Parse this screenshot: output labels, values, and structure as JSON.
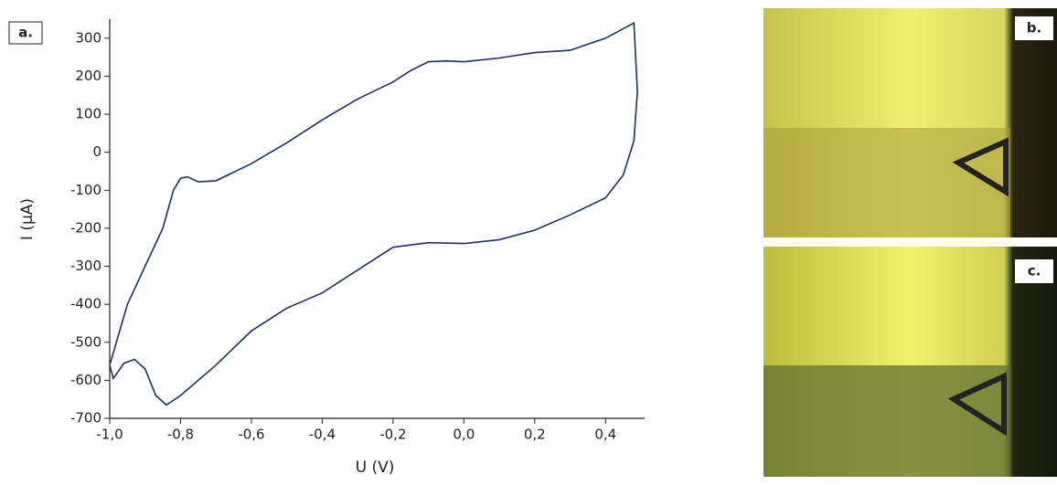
{
  "chart_data": {
    "type": "line",
    "panel_label": "a.",
    "xlabel": "U (V)",
    "ylabel": "I (µA)",
    "xlim": [
      -1.0,
      0.5
    ],
    "ylim": [
      -700,
      350
    ],
    "xticks": [
      {
        "value": -1.0,
        "label": "-1,0"
      },
      {
        "value": -0.8,
        "label": "-0,8"
      },
      {
        "value": -0.6,
        "label": "-0,6"
      },
      {
        "value": -0.4,
        "label": "-0,4"
      },
      {
        "value": -0.2,
        "label": "-0,2"
      },
      {
        "value": 0.0,
        "label": "0,0"
      },
      {
        "value": 0.2,
        "label": "0,2"
      },
      {
        "value": 0.4,
        "label": "0,4"
      }
    ],
    "yticks": [
      -700,
      -600,
      -500,
      -400,
      -300,
      -200,
      -100,
      0,
      100,
      200,
      300
    ],
    "x": [
      -1.0,
      -0.95,
      -0.9,
      -0.85,
      -0.82,
      -0.8,
      -0.78,
      -0.75,
      -0.7,
      -0.6,
      -0.5,
      -0.4,
      -0.3,
      -0.2,
      -0.15,
      -0.1,
      -0.05,
      0.0,
      0.1,
      0.2,
      0.3,
      0.4,
      0.48,
      0.49,
      0.48,
      0.45,
      0.4,
      0.3,
      0.2,
      0.1,
      0.0,
      -0.1,
      -0.2,
      -0.25,
      -0.3,
      -0.4,
      -0.5,
      -0.6,
      -0.7,
      -0.8,
      -0.84,
      -0.87,
      -0.9,
      -0.93,
      -0.96,
      -0.99,
      -1.0
    ],
    "series": [
      {
        "color": "#1f2f5e",
        "values": [
          -560,
          -400,
          -300,
          -200,
          -100,
          -68,
          -65,
          -78,
          -75,
          -30,
          25,
          85,
          140,
          185,
          215,
          238,
          240,
          238,
          248,
          262,
          268,
          300,
          340,
          160,
          30,
          -60,
          -120,
          -165,
          -205,
          -230,
          -240,
          -238,
          -250,
          -280,
          -310,
          -370,
          -410,
          -470,
          -560,
          -640,
          -665,
          -640,
          -570,
          -545,
          -555,
          -595,
          -560
        ]
      }
    ]
  },
  "photos": [
    {
      "label": "b."
    },
    {
      "label": "c."
    }
  ]
}
